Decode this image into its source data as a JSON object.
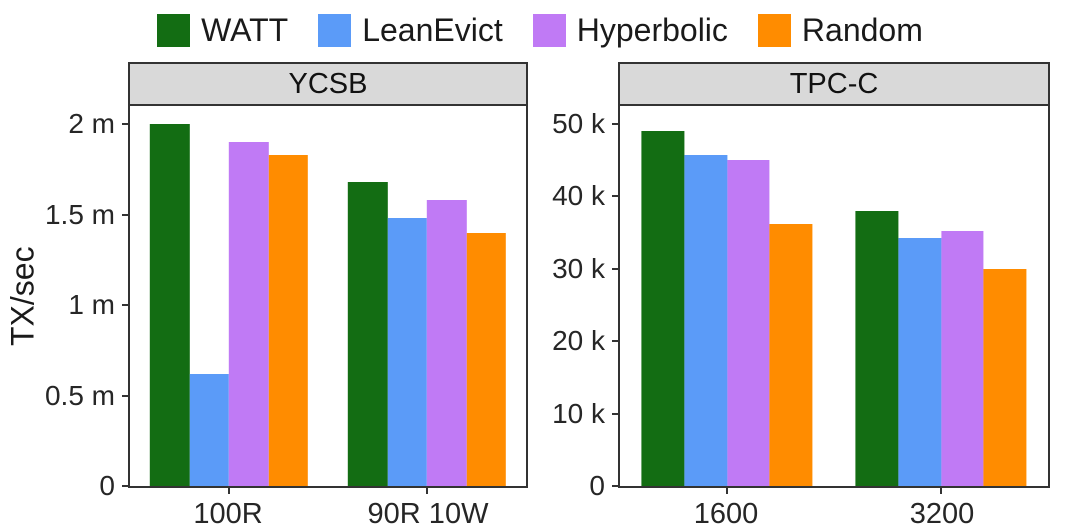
{
  "ylabel": "TX/sec",
  "legend": {
    "position": "top",
    "items": [
      {
        "label": "WATT",
        "color": "#136d13"
      },
      {
        "label": "LeanEvict",
        "color": "#5b9bf8"
      },
      {
        "label": "Hyperbolic",
        "color": "#c07af5"
      },
      {
        "label": "Random",
        "color": "#ff8c00"
      }
    ]
  },
  "chart_data": {
    "type": "bar",
    "title": "",
    "ylabel": "TX/sec",
    "grid": false,
    "legend_position": "top",
    "series_names": [
      "WATT",
      "LeanEvict",
      "Hyperbolic",
      "Random"
    ],
    "facets": [
      {
        "title": "YCSB",
        "categories": [
          "100R",
          "90R 10W"
        ],
        "y_max": 2100000,
        "y_ticks": [
          {
            "value": 0,
            "label": "0"
          },
          {
            "value": 500000,
            "label": "0.5 m"
          },
          {
            "value": 1000000,
            "label": "1 m"
          },
          {
            "value": 1500000,
            "label": "1.5 m"
          },
          {
            "value": 2000000,
            "label": "2 m"
          }
        ],
        "series": [
          {
            "name": "WATT",
            "values": [
              2000000,
              1680000
            ]
          },
          {
            "name": "LeanEvict",
            "values": [
              620000,
              1480000
            ]
          },
          {
            "name": "Hyperbolic",
            "values": [
              1900000,
              1580000
            ]
          },
          {
            "name": "Random",
            "values": [
              1830000,
              1400000
            ]
          }
        ]
      },
      {
        "title": "TPC-C",
        "categories": [
          "1600",
          "3200"
        ],
        "y_max": 52500,
        "y_ticks": [
          {
            "value": 0,
            "label": "0"
          },
          {
            "value": 10000,
            "label": "10 k"
          },
          {
            "value": 20000,
            "label": "20 k"
          },
          {
            "value": 30000,
            "label": "30 k"
          },
          {
            "value": 40000,
            "label": "40 k"
          },
          {
            "value": 50000,
            "label": "50 k"
          }
        ],
        "series": [
          {
            "name": "WATT",
            "values": [
              49000,
              38000
            ]
          },
          {
            "name": "LeanEvict",
            "values": [
              45800,
              34200
            ]
          },
          {
            "name": "Hyperbolic",
            "values": [
              45000,
              35300
            ]
          },
          {
            "name": "Random",
            "values": [
              36200,
              30000
            ]
          }
        ]
      }
    ]
  }
}
